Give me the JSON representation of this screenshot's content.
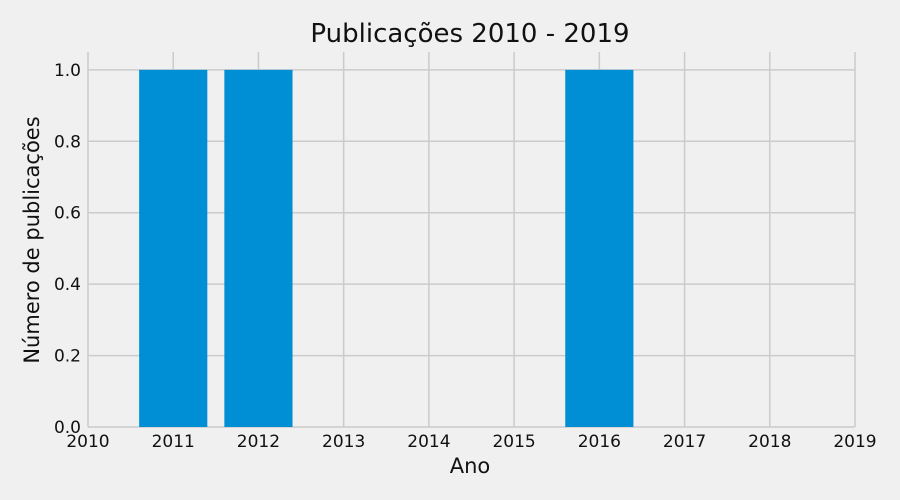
{
  "chart_data": {
    "type": "bar",
    "title": "Publicações 2010 - 2019",
    "xlabel": "Ano",
    "ylabel": "Número de publicações",
    "categories": [
      "2011",
      "2012",
      "2016"
    ],
    "x": [
      2011,
      2012,
      2016
    ],
    "values": [
      1,
      1,
      1
    ],
    "xlim": [
      2010,
      2019
    ],
    "ylim": [
      0,
      1.05
    ],
    "xticks": [
      "2010",
      "2011",
      "2012",
      "2013",
      "2014",
      "2015",
      "2016",
      "2017",
      "2018",
      "2019"
    ],
    "yticks": [
      "0.0",
      "0.2",
      "0.4",
      "0.6",
      "0.8",
      "1.0"
    ],
    "grid": true,
    "legend": "none",
    "bar_color": "#008fd5",
    "grid_color": "#cbcbcb",
    "background_color": "#f0f0f0"
  }
}
